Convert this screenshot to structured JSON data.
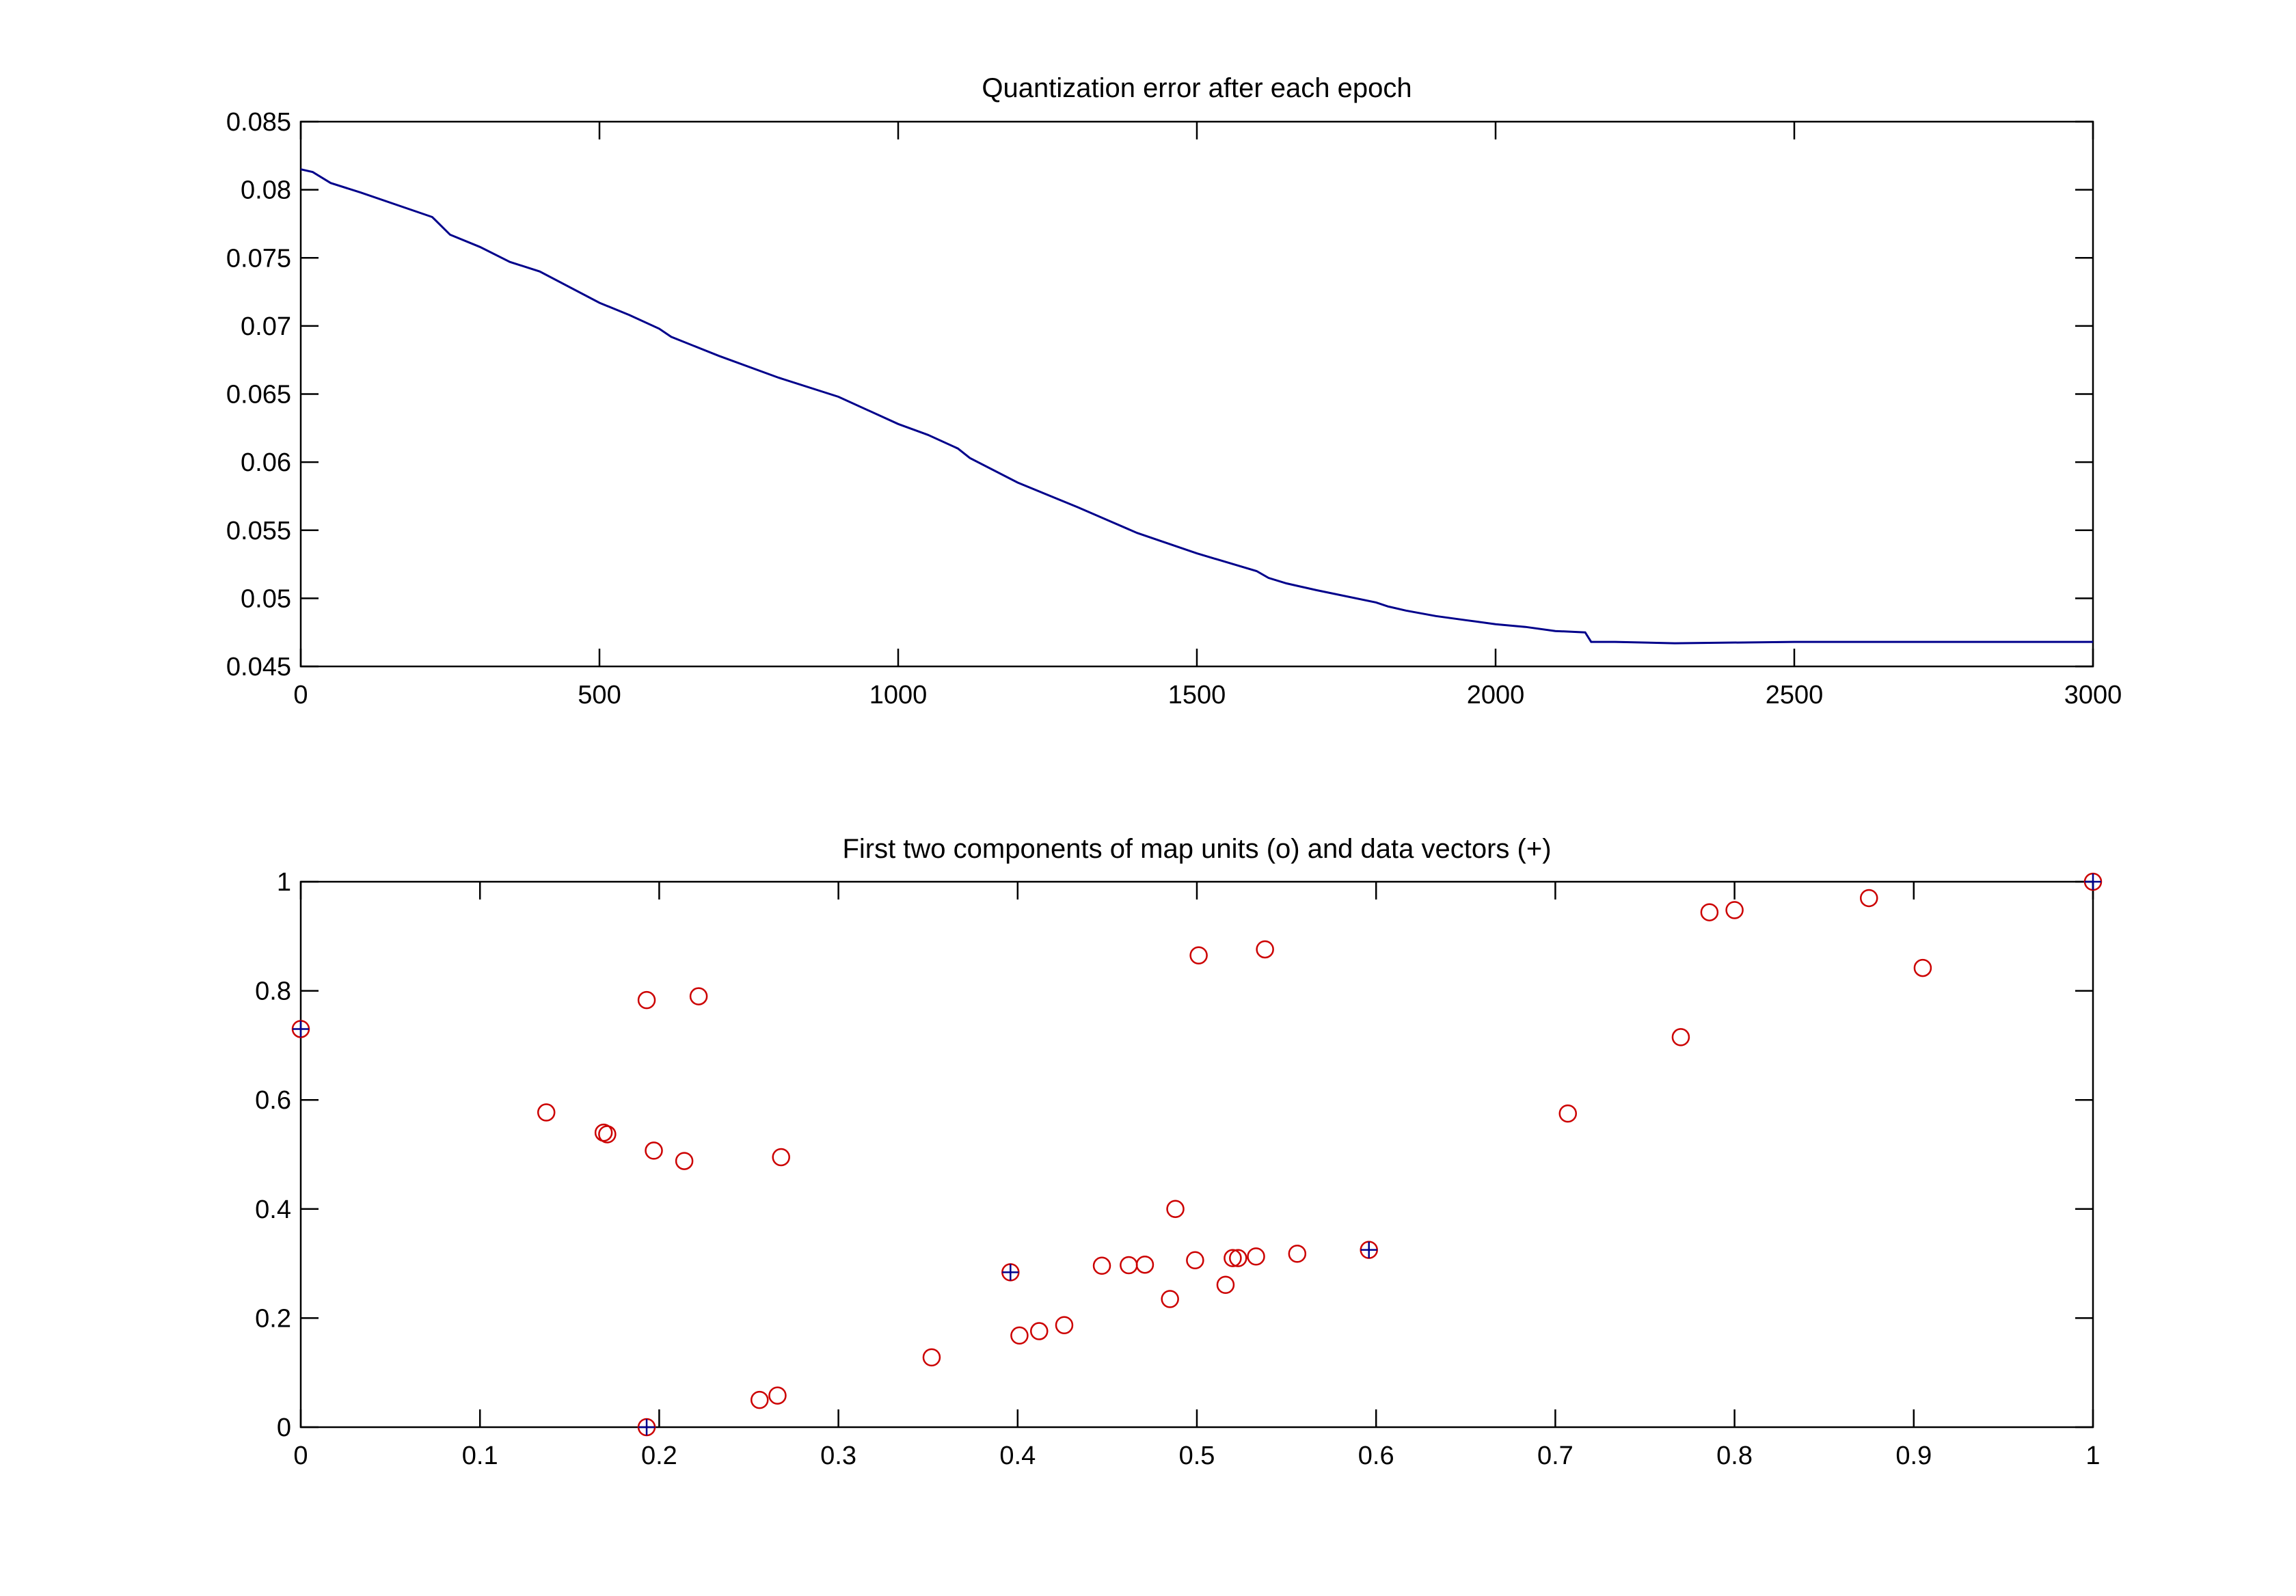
{
  "chart_data": [
    {
      "type": "line",
      "title": "Quantization error after each epoch",
      "xlabel": "",
      "ylabel": "",
      "xlim": [
        0,
        3000
      ],
      "ylim": [
        0.045,
        0.085
      ],
      "xticks": [
        0,
        500,
        1000,
        1500,
        2000,
        2500,
        3000
      ],
      "xtick_labels": [
        "0",
        "500",
        "1000",
        "1500",
        "2000",
        "2500",
        "3000"
      ],
      "yticks": [
        0.045,
        0.05,
        0.055,
        0.06,
        0.065,
        0.07,
        0.075,
        0.08,
        0.085
      ],
      "ytick_labels": [
        "0.045",
        "0.05",
        "0.055",
        "0.06",
        "0.065",
        "0.07",
        "0.075",
        "0.08",
        "0.085"
      ],
      "grid": false,
      "colors": {
        "line": "#00008b"
      },
      "series": [
        {
          "x": [
            0,
            20,
            50,
            100,
            200,
            220,
            250,
            300,
            350,
            400,
            500,
            550,
            600,
            620,
            700,
            800,
            900,
            1000,
            1050,
            1100,
            1120,
            1200,
            1300,
            1400,
            1500,
            1600,
            1620,
            1650,
            1700,
            1800,
            1820,
            1850,
            1900,
            1950,
            2000,
            2050,
            2100,
            2150,
            2160,
            2200,
            2300,
            2500,
            3000
          ],
          "y": [
            0.0815,
            0.0813,
            0.0805,
            0.0798,
            0.0783,
            0.078,
            0.0767,
            0.0758,
            0.0747,
            0.074,
            0.0717,
            0.0708,
            0.0698,
            0.0692,
            0.0678,
            0.0662,
            0.0648,
            0.0628,
            0.062,
            0.061,
            0.0603,
            0.0585,
            0.0567,
            0.0548,
            0.0533,
            0.052,
            0.0515,
            0.0511,
            0.0506,
            0.0497,
            0.0494,
            0.0491,
            0.0487,
            0.0484,
            0.0481,
            0.0479,
            0.0476,
            0.0475,
            0.0468,
            0.0468,
            0.0467,
            0.0468,
            0.0468
          ]
        }
      ]
    },
    {
      "type": "scatter",
      "title": "First two components of map units (o) and data vectors (+)",
      "xlabel": "",
      "ylabel": "",
      "xlim": [
        0,
        1
      ],
      "ylim": [
        0,
        1
      ],
      "xticks": [
        0,
        0.1,
        0.2,
        0.3,
        0.4,
        0.5,
        0.6,
        0.7,
        0.8,
        0.9,
        1
      ],
      "xtick_labels": [
        "0",
        "0.1",
        "0.2",
        "0.3",
        "0.4",
        "0.5",
        "0.6",
        "0.7",
        "0.8",
        "0.9",
        "1"
      ],
      "yticks": [
        0,
        0.2,
        0.4,
        0.6,
        0.8,
        1
      ],
      "ytick_labels": [
        "0",
        "0.2",
        "0.4",
        "0.6",
        "0.8",
        "1"
      ],
      "grid": false,
      "colors": {
        "map_units": "#cc0000",
        "data_vectors": "#00008b"
      },
      "series": [
        {
          "marker": "o",
          "points": [
            [
              0.0,
              0.73
            ],
            [
              0.137,
              0.577
            ],
            [
              0.169,
              0.54
            ],
            [
              0.171,
              0.537
            ],
            [
              0.193,
              0.783
            ],
            [
              0.197,
              0.507
            ],
            [
              0.214,
              0.488
            ],
            [
              0.222,
              0.79
            ],
            [
              0.268,
              0.495
            ],
            [
              0.193,
              0.0
            ],
            [
              0.256,
              0.05
            ],
            [
              0.266,
              0.058
            ],
            [
              0.352,
              0.128
            ],
            [
              0.396,
              0.284
            ],
            [
              0.401,
              0.168
            ],
            [
              0.412,
              0.176
            ],
            [
              0.426,
              0.187
            ],
            [
              0.447,
              0.296
            ],
            [
              0.462,
              0.297
            ],
            [
              0.471,
              0.298
            ],
            [
              0.485,
              0.235
            ],
            [
              0.488,
              0.4
            ],
            [
              0.499,
              0.306
            ],
            [
              0.501,
              0.865
            ],
            [
              0.516,
              0.261
            ],
            [
              0.52,
              0.31
            ],
            [
              0.523,
              0.31
            ],
            [
              0.533,
              0.313
            ],
            [
              0.538,
              0.876
            ],
            [
              0.556,
              0.318
            ],
            [
              0.596,
              0.325
            ],
            [
              0.707,
              0.575
            ],
            [
              0.77,
              0.715
            ],
            [
              0.786,
              0.944
            ],
            [
              0.8,
              0.948
            ],
            [
              0.875,
              0.97
            ],
            [
              0.905,
              0.842
            ],
            [
              1.0,
              1.0
            ]
          ]
        },
        {
          "marker": "+",
          "points": [
            [
              0.0,
              0.73
            ],
            [
              0.193,
              0.0
            ],
            [
              0.396,
              0.284
            ],
            [
              0.596,
              0.325
            ],
            [
              1.0,
              1.0
            ]
          ]
        }
      ]
    }
  ]
}
